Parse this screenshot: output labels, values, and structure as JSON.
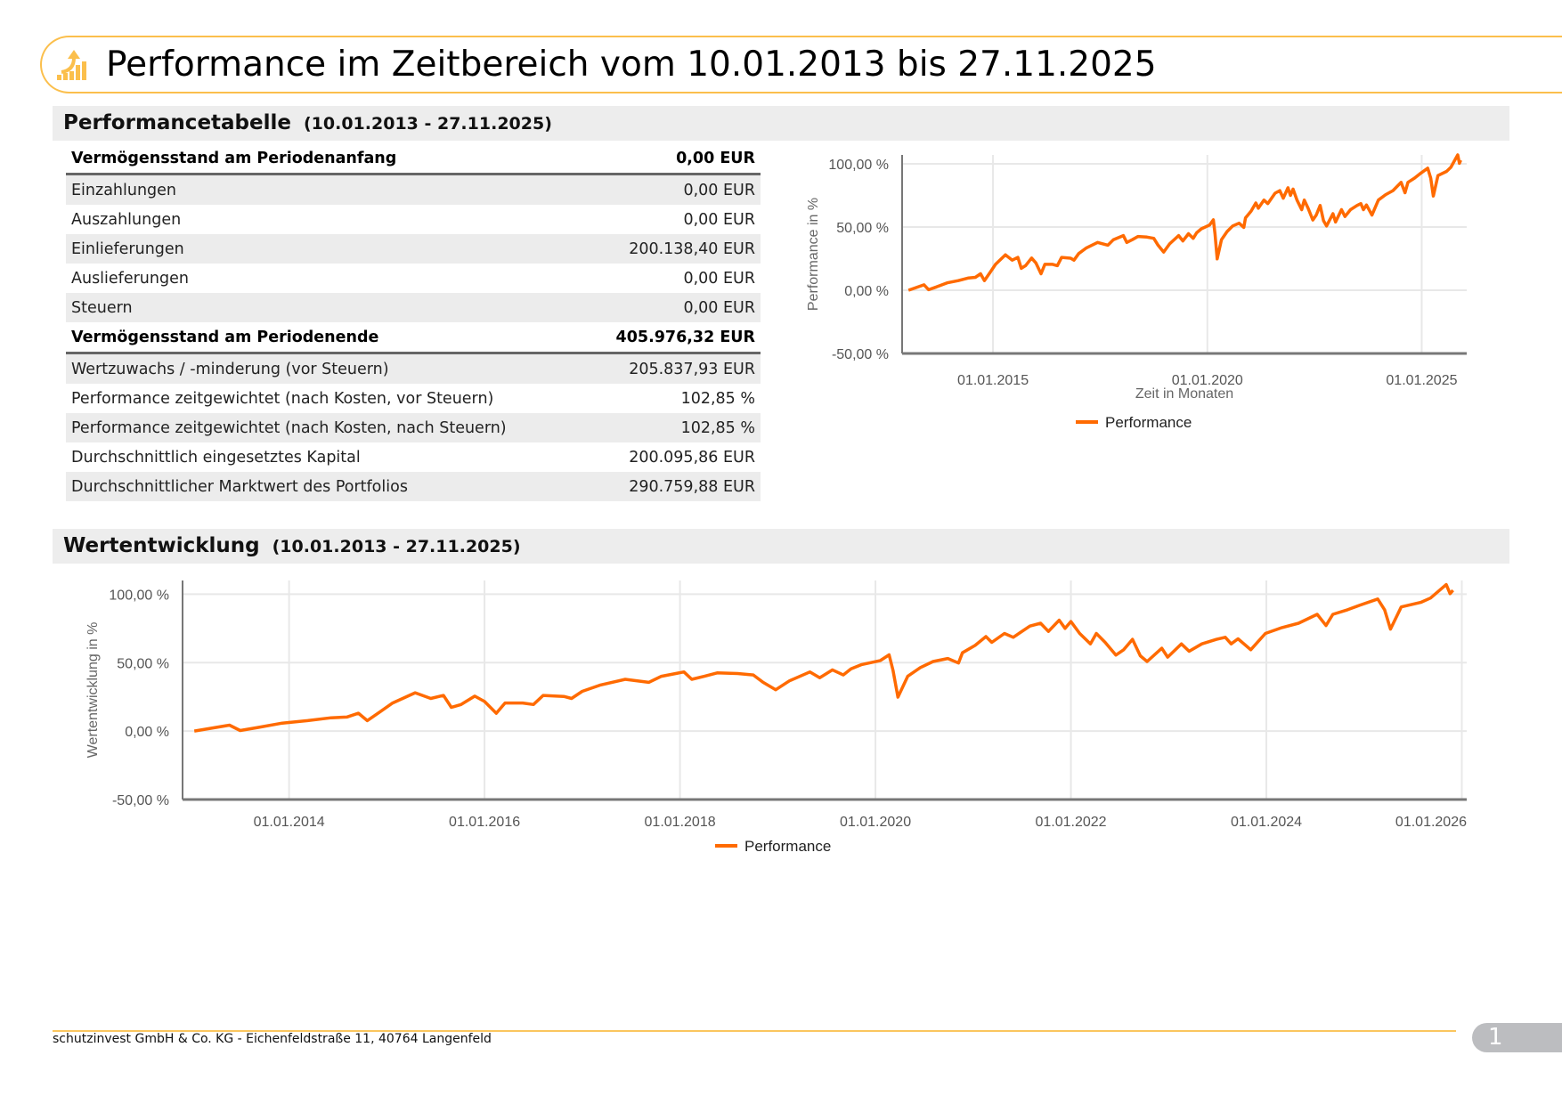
{
  "header": {
    "title": "Performance im Zeitbereich vom 10.01.2013 bis 27.11.2025",
    "icon": "growth-chart-icon",
    "accent": "#fbbf4c"
  },
  "performance_table": {
    "heading": "Performancetabelle",
    "range": "(10.01.2013 - 27.11.2025)",
    "rows": [
      {
        "label": "Vermögensstand am Periodenanfang",
        "value": "0,00 EUR"
      },
      {
        "label": "Einzahlungen",
        "value": "0,00 EUR"
      },
      {
        "label": "Auszahlungen",
        "value": "0,00 EUR"
      },
      {
        "label": "Einlieferungen",
        "value": "200.138,40 EUR"
      },
      {
        "label": "Auslieferungen",
        "value": "0,00 EUR"
      },
      {
        "label": "Steuern",
        "value": "0,00 EUR"
      },
      {
        "label": "Vermögensstand am Periodenende",
        "value": "405.976,32 EUR"
      },
      {
        "label": "Wertzuwachs / -minderung (vor Steuern)",
        "value": "205.837,93 EUR"
      },
      {
        "label": "Performance zeitgewichtet (nach Kosten, vor Steuern)",
        "value": "102,85 %"
      },
      {
        "label": "Performance zeitgewichtet (nach Kosten, nach Steuern)",
        "value": "102,85 %"
      },
      {
        "label": "Durchschnittlich eingesetztes Kapital",
        "value": "200.095,86 EUR"
      },
      {
        "label": "Durchschnittlicher Marktwert des Portfolios",
        "value": "290.759,88 EUR"
      }
    ]
  },
  "wertentwicklung": {
    "heading": "Wertentwicklung",
    "range": "(10.01.2013 - 27.11.2025)"
  },
  "chart_data": {
    "type": "line",
    "line_color": "#ff6a00",
    "series": [
      {
        "name": "Performance",
        "x": [
          2013.03,
          2013.2,
          2013.39,
          2013.5,
          2013.68,
          2013.93,
          2014.19,
          2014.43,
          2014.59,
          2014.71,
          2014.8,
          2014.93,
          2015.06,
          2015.29,
          2015.45,
          2015.58,
          2015.66,
          2015.76,
          2015.9,
          2016.0,
          2016.12,
          2016.21,
          2016.39,
          2016.5,
          2016.6,
          2016.81,
          2016.89,
          2017.0,
          2017.18,
          2017.44,
          2017.68,
          2017.81,
          2018.04,
          2018.12,
          2018.25,
          2018.38,
          2018.59,
          2018.75,
          2018.85,
          2018.98,
          2019.12,
          2019.33,
          2019.43,
          2019.56,
          2019.67,
          2019.75,
          2019.86,
          2020.05,
          2020.14,
          2020.18,
          2020.23,
          2020.33,
          2020.46,
          2020.59,
          2020.74,
          2020.85,
          2020.89,
          2021.02,
          2021.13,
          2021.19,
          2021.32,
          2021.41,
          2021.58,
          2021.69,
          2021.77,
          2021.88,
          2021.94,
          2022.0,
          2022.09,
          2022.2,
          2022.26,
          2022.35,
          2022.46,
          2022.54,
          2022.63,
          2022.71,
          2022.78,
          2022.93,
          2022.99,
          2023.13,
          2023.21,
          2023.34,
          2023.49,
          2023.58,
          2023.64,
          2023.71,
          2023.84,
          2023.99,
          2024.16,
          2024.33,
          2024.52,
          2024.61,
          2024.68,
          2024.83,
          2024.95,
          2025.14,
          2025.21,
          2025.27,
          2025.38,
          2025.58,
          2025.68,
          2025.84,
          2025.88,
          2025.91
        ],
        "y": [
          0,
          2,
          4.3,
          0.4,
          2.6,
          5.8,
          7.6,
          9.7,
          10.2,
          13,
          7.6,
          14,
          20.5,
          28,
          23.8,
          26,
          17.3,
          19.4,
          25.5,
          21.6,
          13,
          20.5,
          20.5,
          19.4,
          26,
          25.3,
          23.8,
          29,
          33.5,
          37.8,
          35.6,
          40,
          43.2,
          37.8,
          40,
          42.5,
          42,
          41,
          35.6,
          30.2,
          36.7,
          43.2,
          39,
          44.7,
          41,
          45.4,
          48.6,
          51.5,
          55.7,
          44.3,
          24.8,
          40,
          46.4,
          50.8,
          53,
          49.7,
          57.2,
          62.6,
          69,
          64.8,
          71.3,
          68.5,
          76.7,
          78.8,
          72.8,
          81,
          75,
          80,
          71.3,
          63.7,
          71.3,
          64.8,
          55.5,
          59.4,
          67,
          55,
          50.8,
          60.5,
          54,
          63.7,
          58.3,
          63.7,
          67,
          68.5,
          63.7,
          67.4,
          59.4,
          71.3,
          75.6,
          78.8,
          85.3,
          77.1,
          85.3,
          88.6,
          91.8,
          96.5,
          88.6,
          74.5,
          90.7,
          94,
          97.2,
          107,
          100.4,
          102.85
        ]
      }
    ],
    "charts": [
      {
        "ylabel": "Performance in %",
        "xlabel": "Zeit in Monaten",
        "xlim": [
          2012.88,
          2026.05
        ],
        "ylim": [
          -50,
          107
        ],
        "xticks": [
          2015,
          2020,
          2025
        ],
        "xtick_labels": [
          "01.01.2015",
          "01.01.2020",
          "01.01.2025"
        ],
        "yticks": [
          100,
          50,
          0,
          -50
        ],
        "ytick_labels": [
          "100,00 %",
          "50,00 %",
          "0,00 %",
          "-50,00 %"
        ],
        "legend": [
          "Performance"
        ],
        "legend_position": "bottom",
        "grid": true
      },
      {
        "ylabel": "Wertentwicklung in %",
        "xlabel": "",
        "xlim": [
          2012.91,
          2026.05
        ],
        "ylim": [
          -50,
          110
        ],
        "xticks": [
          2014,
          2016,
          2018,
          2020,
          2022,
          2024,
          2026
        ],
        "xtick_labels": [
          "01.01.2014",
          "01.01.2016",
          "01.01.2018",
          "01.01.2020",
          "01.01.2022",
          "01.01.2024",
          "01.01.2026"
        ],
        "yticks": [
          100,
          50,
          0,
          -50
        ],
        "ytick_labels": [
          "100,00 %",
          "50,00 %",
          "0,00 %",
          "-50,00 %"
        ],
        "legend": [
          "Performance"
        ],
        "legend_position": "bottom",
        "grid": true
      }
    ]
  },
  "footer": {
    "text": "schutzinvest GmbH & Co. KG - Eichenfeldstraße 11, 40764 Langenfeld",
    "page": "1"
  }
}
